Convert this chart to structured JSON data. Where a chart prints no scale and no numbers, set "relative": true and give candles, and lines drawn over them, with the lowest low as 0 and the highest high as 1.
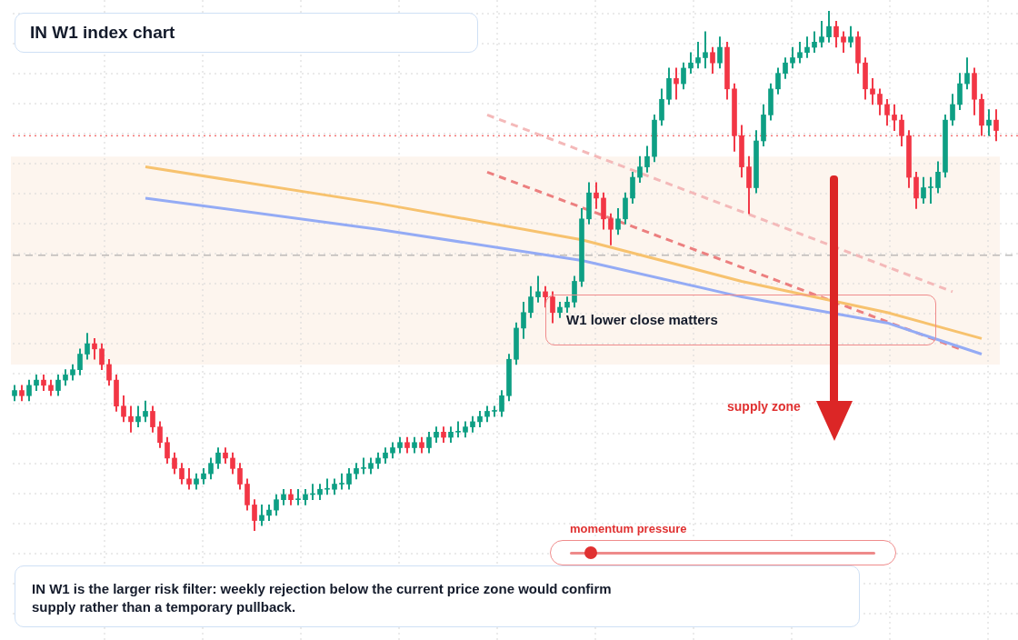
{
  "chart_data": {
    "type": "candlestick",
    "title": "IN W1 index chart",
    "relative": true,
    "grid": true,
    "legend": false,
    "categories": [
      null,
      null,
      null,
      null,
      null,
      null,
      null,
      null,
      null,
      null,
      null,
      null,
      null,
      null,
      null,
      null,
      null,
      null,
      null,
      null,
      null,
      null,
      null,
      null,
      null,
      null,
      null,
      null,
      null,
      null,
      null,
      null,
      null,
      null,
      null,
      null,
      null,
      null,
      null,
      null,
      null,
      null,
      null,
      null,
      null,
      null,
      null,
      null,
      null,
      null,
      null,
      null,
      null,
      null,
      null,
      null,
      null,
      null,
      null,
      null,
      null,
      null,
      null,
      null,
      null,
      null,
      null,
      null,
      null,
      null,
      null,
      null,
      null,
      null,
      null,
      null,
      null,
      null,
      null,
      null,
      null,
      null,
      null,
      null,
      null,
      null,
      null,
      null,
      null,
      null,
      null,
      null,
      null,
      null,
      null,
      null,
      null,
      null,
      null,
      null,
      null,
      null,
      null,
      null,
      null,
      null,
      null,
      null,
      null,
      null,
      null,
      null,
      null,
      null,
      null,
      null,
      null,
      null,
      null,
      null,
      null,
      null,
      null,
      null,
      null,
      null,
      null,
      null,
      null,
      null,
      null,
      null,
      null,
      null,
      null,
      null
    ],
    "ohlc": [
      [
        0.26,
        0.28,
        0.25,
        0.27
      ],
      [
        0.27,
        0.28,
        0.25,
        0.26
      ],
      [
        0.26,
        0.29,
        0.25,
        0.28
      ],
      [
        0.28,
        0.3,
        0.27,
        0.29
      ],
      [
        0.29,
        0.3,
        0.27,
        0.28
      ],
      [
        0.28,
        0.29,
        0.26,
        0.27
      ],
      [
        0.27,
        0.3,
        0.26,
        0.29
      ],
      [
        0.29,
        0.31,
        0.28,
        0.3
      ],
      [
        0.3,
        0.32,
        0.29,
        0.31
      ],
      [
        0.31,
        0.35,
        0.3,
        0.34
      ],
      [
        0.34,
        0.38,
        0.33,
        0.36
      ],
      [
        0.36,
        0.37,
        0.33,
        0.35
      ],
      [
        0.35,
        0.36,
        0.31,
        0.32
      ],
      [
        0.32,
        0.33,
        0.28,
        0.29
      ],
      [
        0.29,
        0.3,
        0.23,
        0.24
      ],
      [
        0.24,
        0.26,
        0.21,
        0.22
      ],
      [
        0.22,
        0.24,
        0.19,
        0.21
      ],
      [
        0.21,
        0.24,
        0.2,
        0.22
      ],
      [
        0.22,
        0.25,
        0.21,
        0.23
      ],
      [
        0.23,
        0.24,
        0.19,
        0.2
      ],
      [
        0.2,
        0.21,
        0.16,
        0.17
      ],
      [
        0.17,
        0.18,
        0.13,
        0.14
      ],
      [
        0.14,
        0.15,
        0.11,
        0.12
      ],
      [
        0.12,
        0.13,
        0.09,
        0.1
      ],
      [
        0.1,
        0.12,
        0.08,
        0.09
      ],
      [
        0.09,
        0.11,
        0.08,
        0.1
      ],
      [
        0.1,
        0.12,
        0.09,
        0.11
      ],
      [
        0.11,
        0.14,
        0.1,
        0.13
      ],
      [
        0.13,
        0.16,
        0.12,
        0.15
      ],
      [
        0.15,
        0.16,
        0.13,
        0.14
      ],
      [
        0.14,
        0.15,
        0.11,
        0.12
      ],
      [
        0.12,
        0.13,
        0.08,
        0.09
      ],
      [
        0.09,
        0.1,
        0.04,
        0.05
      ],
      [
        0.05,
        0.06,
        0.0,
        0.02
      ],
      [
        0.02,
        0.05,
        0.01,
        0.03
      ],
      [
        0.03,
        0.05,
        0.02,
        0.04
      ],
      [
        0.04,
        0.07,
        0.03,
        0.06
      ],
      [
        0.06,
        0.08,
        0.05,
        0.07
      ],
      [
        0.07,
        0.08,
        0.05,
        0.06
      ],
      [
        0.06,
        0.08,
        0.05,
        0.06
      ],
      [
        0.06,
        0.08,
        0.05,
        0.07
      ],
      [
        0.07,
        0.09,
        0.06,
        0.07
      ],
      [
        0.07,
        0.09,
        0.06,
        0.08
      ],
      [
        0.08,
        0.1,
        0.07,
        0.08
      ],
      [
        0.08,
        0.1,
        0.07,
        0.09
      ],
      [
        0.09,
        0.11,
        0.08,
        0.09
      ],
      [
        0.09,
        0.12,
        0.08,
        0.11
      ],
      [
        0.11,
        0.13,
        0.1,
        0.12
      ],
      [
        0.12,
        0.14,
        0.11,
        0.12
      ],
      [
        0.12,
        0.14,
        0.11,
        0.13
      ],
      [
        0.13,
        0.15,
        0.12,
        0.14
      ],
      [
        0.14,
        0.16,
        0.13,
        0.15
      ],
      [
        0.15,
        0.17,
        0.14,
        0.16
      ],
      [
        0.16,
        0.18,
        0.15,
        0.17
      ],
      [
        0.17,
        0.18,
        0.15,
        0.16
      ],
      [
        0.16,
        0.18,
        0.15,
        0.17
      ],
      [
        0.17,
        0.18,
        0.15,
        0.16
      ],
      [
        0.16,
        0.19,
        0.15,
        0.18
      ],
      [
        0.18,
        0.2,
        0.17,
        0.19
      ],
      [
        0.19,
        0.2,
        0.17,
        0.18
      ],
      [
        0.18,
        0.2,
        0.17,
        0.19
      ],
      [
        0.19,
        0.21,
        0.18,
        0.19
      ],
      [
        0.19,
        0.21,
        0.18,
        0.2
      ],
      [
        0.2,
        0.22,
        0.19,
        0.21
      ],
      [
        0.21,
        0.23,
        0.2,
        0.22
      ],
      [
        0.22,
        0.24,
        0.21,
        0.23
      ],
      [
        0.23,
        0.24,
        0.22,
        0.23
      ],
      [
        0.23,
        0.27,
        0.22,
        0.26
      ],
      [
        0.26,
        0.34,
        0.25,
        0.33
      ],
      [
        0.33,
        0.4,
        0.32,
        0.39
      ],
      [
        0.39,
        0.44,
        0.37,
        0.42
      ],
      [
        0.42,
        0.47,
        0.41,
        0.45
      ],
      [
        0.45,
        0.49,
        0.44,
        0.46
      ],
      [
        0.46,
        0.47,
        0.43,
        0.45
      ],
      [
        0.45,
        0.46,
        0.4,
        0.42
      ],
      [
        0.42,
        0.44,
        0.41,
        0.43
      ],
      [
        0.43,
        0.45,
        0.42,
        0.44
      ],
      [
        0.44,
        0.49,
        0.43,
        0.48
      ],
      [
        0.48,
        0.62,
        0.47,
        0.6
      ],
      [
        0.6,
        0.67,
        0.59,
        0.65
      ],
      [
        0.65,
        0.67,
        0.62,
        0.64
      ],
      [
        0.64,
        0.65,
        0.58,
        0.6
      ],
      [
        0.6,
        0.61,
        0.55,
        0.58
      ],
      [
        0.58,
        0.62,
        0.57,
        0.6
      ],
      [
        0.6,
        0.65,
        0.59,
        0.64
      ],
      [
        0.64,
        0.69,
        0.63,
        0.68
      ],
      [
        0.68,
        0.72,
        0.67,
        0.7
      ],
      [
        0.7,
        0.74,
        0.69,
        0.72
      ],
      [
        0.72,
        0.8,
        0.71,
        0.79
      ],
      [
        0.79,
        0.85,
        0.78,
        0.83
      ],
      [
        0.83,
        0.89,
        0.82,
        0.87
      ],
      [
        0.87,
        0.89,
        0.83,
        0.86
      ],
      [
        0.86,
        0.9,
        0.85,
        0.89
      ],
      [
        0.89,
        0.92,
        0.88,
        0.9
      ],
      [
        0.9,
        0.94,
        0.89,
        0.91
      ],
      [
        0.91,
        0.96,
        0.89,
        0.92
      ],
      [
        0.92,
        0.93,
        0.88,
        0.9
      ],
      [
        0.9,
        0.95,
        0.89,
        0.93
      ],
      [
        0.93,
        0.94,
        0.83,
        0.85
      ],
      [
        0.85,
        0.86,
        0.73,
        0.76
      ],
      [
        0.76,
        0.78,
        0.68,
        0.7
      ],
      [
        0.7,
        0.72,
        0.61,
        0.66
      ],
      [
        0.66,
        0.77,
        0.65,
        0.75
      ],
      [
        0.75,
        0.82,
        0.74,
        0.8
      ],
      [
        0.8,
        0.86,
        0.79,
        0.85
      ],
      [
        0.85,
        0.89,
        0.84,
        0.88
      ],
      [
        0.88,
        0.91,
        0.87,
        0.9
      ],
      [
        0.9,
        0.93,
        0.89,
        0.91
      ],
      [
        0.91,
        0.94,
        0.9,
        0.92
      ],
      [
        0.92,
        0.95,
        0.91,
        0.93
      ],
      [
        0.93,
        0.96,
        0.92,
        0.94
      ],
      [
        0.94,
        0.98,
        0.93,
        0.95
      ],
      [
        0.95,
        1.0,
        0.94,
        0.97
      ],
      [
        0.97,
        0.98,
        0.93,
        0.95
      ],
      [
        0.95,
        0.96,
        0.92,
        0.94
      ],
      [
        0.94,
        0.97,
        0.93,
        0.95
      ],
      [
        0.95,
        0.96,
        0.88,
        0.9
      ],
      [
        0.9,
        0.91,
        0.83,
        0.85
      ],
      [
        0.85,
        0.87,
        0.82,
        0.84
      ],
      [
        0.84,
        0.85,
        0.8,
        0.82
      ],
      [
        0.82,
        0.83,
        0.78,
        0.8
      ],
      [
        0.8,
        0.82,
        0.77,
        0.79
      ],
      [
        0.79,
        0.8,
        0.74,
        0.76
      ],
      [
        0.76,
        0.77,
        0.66,
        0.68
      ],
      [
        0.68,
        0.69,
        0.62,
        0.64
      ],
      [
        0.64,
        0.68,
        0.63,
        0.66
      ],
      [
        0.66,
        0.68,
        0.63,
        0.66
      ],
      [
        0.66,
        0.71,
        0.65,
        0.69
      ],
      [
        0.69,
        0.8,
        0.68,
        0.79
      ],
      [
        0.79,
        0.84,
        0.78,
        0.82
      ],
      [
        0.82,
        0.88,
        0.81,
        0.86
      ],
      [
        0.86,
        0.91,
        0.85,
        0.88
      ],
      [
        0.88,
        0.89,
        0.8,
        0.83
      ],
      [
        0.83,
        0.84,
        0.76,
        0.78
      ],
      [
        0.78,
        0.81,
        0.76,
        0.79
      ],
      [
        0.79,
        0.81,
        0.75,
        0.77
      ]
    ],
    "series": [
      {
        "type": "line",
        "color": "#f7c26e",
        "line_style": "solid",
        "values": [
          null,
          null,
          null,
          null,
          null,
          null,
          null,
          null,
          null,
          null,
          null,
          null,
          null,
          null,
          null,
          null,
          null,
          null,
          0.7,
          null,
          null,
          null,
          null,
          null,
          null,
          null,
          null,
          null,
          null,
          null,
          null,
          null,
          null,
          null,
          null,
          null,
          null,
          null,
          null,
          null,
          null,
          null,
          null,
          null,
          null,
          null,
          null,
          null,
          null,
          null,
          0.63,
          null,
          null,
          null,
          null,
          null,
          null,
          null,
          null,
          null,
          null,
          null,
          null,
          null,
          null,
          null,
          null,
          null,
          null,
          null,
          null,
          null,
          null,
          null,
          null,
          null,
          null,
          null,
          0.56,
          null,
          null,
          null,
          null,
          null,
          null,
          null,
          null,
          null,
          null,
          null,
          null,
          null,
          null,
          null,
          null,
          null,
          null,
          null,
          null,
          null,
          0.48,
          null,
          null,
          null,
          null,
          null,
          null,
          null,
          null,
          null,
          null,
          null,
          null,
          null,
          null,
          null,
          null,
          null,
          null,
          null,
          0.42,
          null,
          null,
          null,
          null,
          null,
          null,
          null,
          null,
          null,
          null,
          null,
          null,
          0.37,
          null,
          null
        ]
      },
      {
        "type": "line",
        "color": "#94abf5",
        "line_style": "solid",
        "values": [
          null,
          null,
          null,
          null,
          null,
          null,
          null,
          null,
          null,
          null,
          null,
          null,
          null,
          null,
          null,
          null,
          null,
          null,
          0.64,
          null,
          null,
          null,
          null,
          null,
          null,
          null,
          null,
          null,
          null,
          null,
          null,
          null,
          null,
          null,
          null,
          null,
          null,
          null,
          null,
          null,
          null,
          null,
          null,
          null,
          null,
          null,
          null,
          null,
          null,
          null,
          0.58,
          null,
          null,
          null,
          null,
          null,
          null,
          null,
          null,
          null,
          null,
          null,
          null,
          null,
          null,
          null,
          null,
          null,
          null,
          null,
          null,
          null,
          null,
          null,
          null,
          null,
          null,
          null,
          0.52,
          null,
          null,
          null,
          null,
          null,
          null,
          null,
          null,
          null,
          null,
          null,
          null,
          null,
          null,
          null,
          null,
          null,
          null,
          null,
          null,
          null,
          0.45,
          null,
          null,
          null,
          null,
          null,
          null,
          null,
          null,
          null,
          null,
          null,
          null,
          null,
          null,
          null,
          null,
          null,
          null,
          null,
          0.4,
          null,
          null,
          null,
          null,
          null,
          null,
          null,
          null,
          null,
          null,
          null,
          null,
          0.34,
          null,
          null
        ]
      },
      {
        "type": "line",
        "color": "#ec7f7f",
        "line_style": "dashed",
        "values": [
          null,
          null,
          null,
          null,
          null,
          null,
          null,
          null,
          null,
          null,
          null,
          null,
          null,
          null,
          null,
          null,
          null,
          null,
          null,
          null,
          null,
          null,
          null,
          null,
          null,
          null,
          null,
          null,
          null,
          null,
          null,
          null,
          null,
          null,
          null,
          null,
          null,
          null,
          null,
          null,
          null,
          null,
          null,
          null,
          null,
          null,
          null,
          null,
          null,
          null,
          null,
          null,
          null,
          null,
          null,
          null,
          null,
          null,
          null,
          null,
          null,
          null,
          null,
          null,
          null,
          0.69,
          null,
          null,
          null,
          null,
          null,
          null,
          null,
          null,
          null,
          null,
          null,
          null,
          null,
          null,
          null,
          null,
          null,
          null,
          null,
          null,
          null,
          null,
          null,
          null,
          null,
          null,
          null,
          null,
          null,
          null,
          null,
          null,
          null,
          null,
          null,
          null,
          null,
          null,
          null,
          null,
          null,
          null,
          null,
          null,
          null,
          null,
          null,
          null,
          null,
          null,
          null,
          null,
          null,
          null,
          null,
          null,
          null,
          null,
          null,
          null,
          null,
          null,
          null,
          null,
          0.35,
          null,
          null,
          null,
          null,
          null
        ]
      },
      {
        "type": "line",
        "color": "#f4b9b9",
        "line_style": "dashed",
        "values": [
          null,
          null,
          null,
          null,
          null,
          null,
          null,
          null,
          null,
          null,
          null,
          null,
          null,
          null,
          null,
          null,
          null,
          null,
          null,
          null,
          null,
          null,
          null,
          null,
          null,
          null,
          null,
          null,
          null,
          null,
          null,
          null,
          null,
          null,
          null,
          null,
          null,
          null,
          null,
          null,
          null,
          null,
          null,
          null,
          null,
          null,
          null,
          null,
          null,
          null,
          null,
          null,
          null,
          null,
          null,
          null,
          null,
          null,
          null,
          null,
          null,
          null,
          null,
          null,
          null,
          0.8,
          null,
          null,
          null,
          null,
          null,
          null,
          null,
          null,
          null,
          null,
          null,
          null,
          null,
          null,
          null,
          null,
          null,
          null,
          null,
          null,
          null,
          null,
          null,
          null,
          null,
          null,
          null,
          null,
          null,
          null,
          null,
          null,
          null,
          null,
          null,
          null,
          null,
          null,
          null,
          null,
          null,
          null,
          null,
          null,
          null,
          null,
          null,
          null,
          null,
          null,
          null,
          null,
          null,
          null,
          null,
          null,
          null,
          null,
          null,
          null,
          null,
          null,
          null,
          0.46,
          null,
          null,
          null,
          null,
          null,
          null
        ]
      }
    ],
    "ref_lines": [
      {
        "axis": "y",
        "value": 0.76,
        "color": "#f03e3e",
        "line_style": "dotted"
      },
      {
        "axis": "y",
        "value": 0.53,
        "color": "#9e9e9e",
        "line_style": "dashed"
      }
    ],
    "bands": [
      {
        "axis": "y",
        "from": 0.32,
        "to": 0.72,
        "color": "#fdf5ee"
      }
    ],
    "annotations": [
      "W1 lower close matters",
      "supply zone",
      "momentum pressure",
      "IN W1 is the larger risk filter: weekly rejection below the current price zone would confirm supply rather than a temporary pullback."
    ]
  }
}
